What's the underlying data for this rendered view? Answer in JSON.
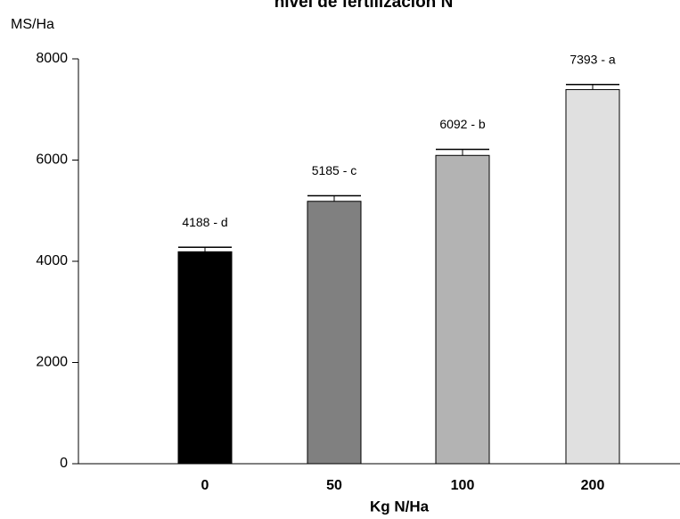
{
  "chart_data": {
    "type": "bar",
    "title": "nivel de fertilización N",
    "ylabel": "MS/Ha",
    "xlabel": "Kg N/Ha",
    "categories": [
      "0",
      "50",
      "100",
      "200"
    ],
    "values": [
      4188,
      5185,
      6092,
      7393
    ],
    "value_labels": [
      "4188 - d",
      "5185 - c",
      "6092 - b",
      "7393 - a"
    ],
    "errors": [
      90,
      110,
      120,
      100
    ],
    "colors": [
      "#000000",
      "#808080",
      "#b3b3b3",
      "#e0e0e0"
    ],
    "ylim": [
      0,
      8000
    ],
    "yticks": [
      0,
      2000,
      4000,
      6000,
      8000
    ]
  }
}
